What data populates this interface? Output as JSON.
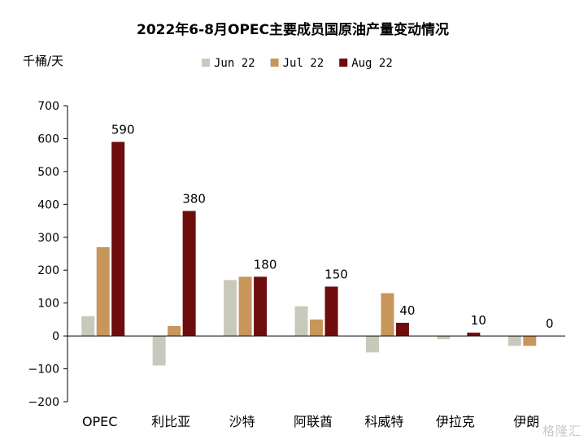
{
  "chart_data": {
    "type": "bar",
    "title": "2022年6-8月OPEC主要成员国原油产量变动情况",
    "ylabel": "千桶/天",
    "categories": [
      "OPEC",
      "利比亚",
      "沙特",
      "阿联酋",
      "科威特",
      "伊拉克",
      "伊朗"
    ],
    "series": [
      {
        "name": "Jun 22",
        "color": "#c9c9bb",
        "values": [
          60,
          -90,
          170,
          90,
          -50,
          -10,
          -30
        ]
      },
      {
        "name": "Jul 22",
        "color": "#c8955a",
        "values": [
          270,
          30,
          180,
          50,
          130,
          0,
          -30
        ]
      },
      {
        "name": "Aug 22",
        "color": "#6e0d0d",
        "values": [
          590,
          380,
          180,
          150,
          40,
          10,
          0
        ]
      }
    ],
    "data_labels": [
      "590",
      "380",
      "180",
      "150",
      "40",
      "10",
      "0"
    ],
    "ylim": [
      -200,
      700
    ],
    "yticks": [
      -200,
      -100,
      0,
      100,
      200,
      300,
      400,
      500,
      600,
      700
    ],
    "grid": false,
    "legend_position": "top"
  },
  "watermark": "格隆汇"
}
